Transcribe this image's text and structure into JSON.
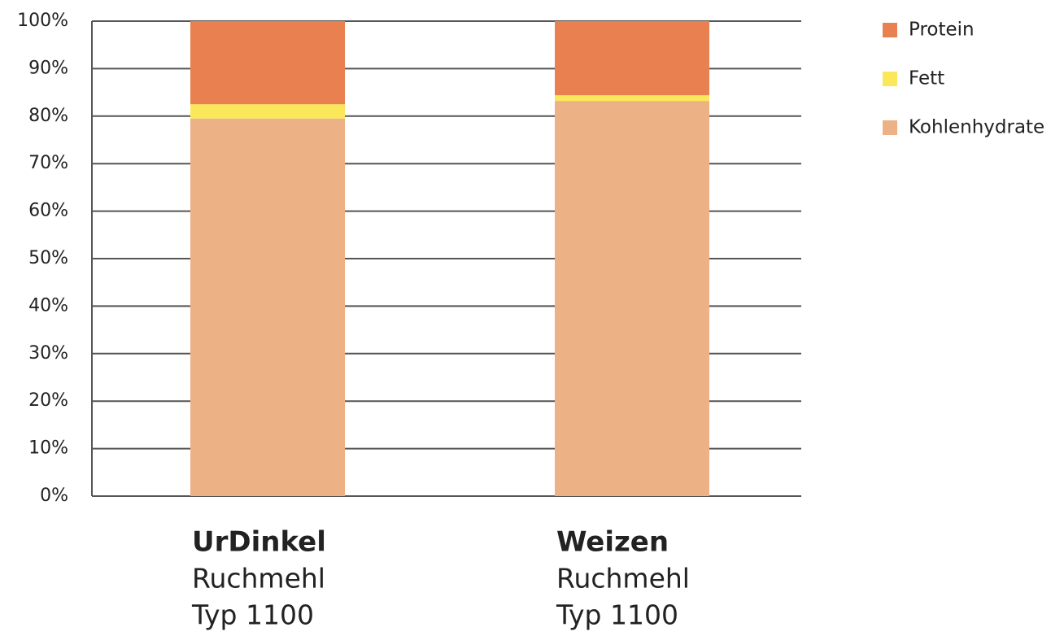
{
  "chart_data": {
    "type": "stacked_bar",
    "categories": [
      [
        "UrDinkel",
        "Ruchmehl",
        "Typ 1100"
      ],
      [
        "Weizen",
        "Ruchmehl",
        "Typ 1100"
      ]
    ],
    "series": [
      {
        "name": "Kohlenhydrate",
        "color": "#ecb185",
        "values": [
          79.5,
          83.2
        ]
      },
      {
        "name": "Fett",
        "color": "#fbe85a",
        "values": [
          3,
          1.2
        ]
      },
      {
        "name": "Protein",
        "color": "#e8804f",
        "values": [
          17.5,
          15.6
        ]
      }
    ],
    "ylim": [
      0,
      100
    ],
    "yticks": [
      {
        "value": 0,
        "label": "0%"
      },
      {
        "value": 10,
        "label": "10%"
      },
      {
        "value": 20,
        "label": "20%"
      },
      {
        "value": 30,
        "label": "30%"
      },
      {
        "value": 40,
        "label": "40%"
      },
      {
        "value": 50,
        "label": "50%"
      },
      {
        "value": 60,
        "label": "60%"
      },
      {
        "value": 70,
        "label": "70%"
      },
      {
        "value": 80,
        "label": "80%"
      },
      {
        "value": 90,
        "label": "90%"
      },
      {
        "value": 100,
        "label": "100%"
      }
    ],
    "grid": true,
    "legend": "right"
  }
}
